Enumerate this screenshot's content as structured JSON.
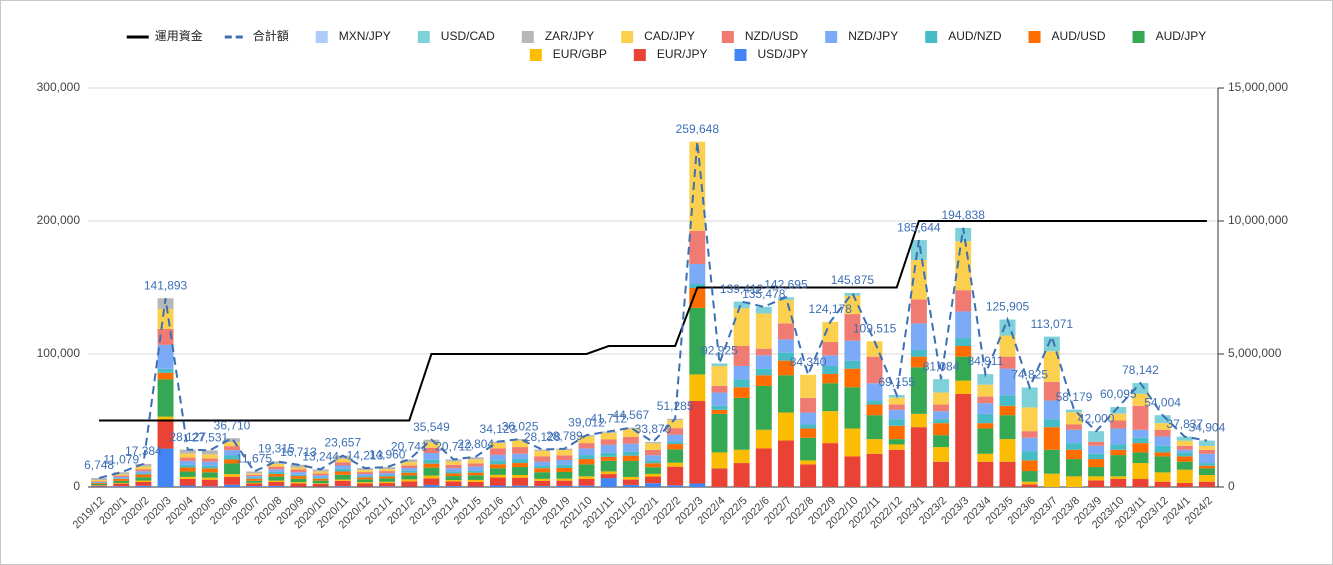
{
  "chart_data": {
    "type": "bar",
    "stacked": true,
    "grid": true,
    "legend": "top",
    "categories": [
      "2019/12",
      "2020/1",
      "2020/2",
      "2020/3",
      "2020/4",
      "2020/5",
      "2020/6",
      "2020/7",
      "2020/8",
      "2020/9",
      "2020/10",
      "2020/11",
      "2020/12",
      "2021/1",
      "2021/2",
      "2021/3",
      "2021/4",
      "2021/5",
      "2021/6",
      "2021/7",
      "2021/8",
      "2021/9",
      "2021/10",
      "2021/11",
      "2021/12",
      "2022/1",
      "2022/2",
      "2022/3",
      "2022/4",
      "2022/5",
      "2022/6",
      "2022/7",
      "2022/8",
      "2022/9",
      "2022/10",
      "2022/11",
      "2022/12",
      "2023/1",
      "2023/2",
      "2023/3",
      "2023/4",
      "2023/5",
      "2023/6",
      "2023/7",
      "2023/8",
      "2023/9",
      "2023/10",
      "2023/11",
      "2023/12",
      "2024/1",
      "2024/2"
    ],
    "ylim": [
      0,
      300000
    ],
    "yticks": [
      0,
      {
        "value": 100000,
        "label": "100,000"
      },
      {
        "value": 200000,
        "label": "200,000"
      },
      {
        "value": 300000,
        "label": "300,000"
      }
    ],
    "y2lim": [
      0,
      15000000
    ],
    "y2ticks": [
      0,
      {
        "value": 5000000,
        "label": "5,000,000"
      },
      {
        "value": 10000000,
        "label": "10,000,000"
      },
      {
        "value": 15000000,
        "label": "15,000,000"
      }
    ],
    "series": [
      {
        "name": "運用資金",
        "type": "line",
        "axis": "y2",
        "color": "#000000",
        "values": [
          2500000,
          2500000,
          2500000,
          2500000,
          2500000,
          2500000,
          2500000,
          2500000,
          2500000,
          2500000,
          2500000,
          2500000,
          2500000,
          2500000,
          2500000,
          5000000,
          5000000,
          5000000,
          5000000,
          5000000,
          5000000,
          5000000,
          5000000,
          5300000,
          5300000,
          5300000,
          5300000,
          7500000,
          7500000,
          7500000,
          7500000,
          7500000,
          7500000,
          7500000,
          7500000,
          7500000,
          7500000,
          10000000,
          10000000,
          10000000,
          10000000,
          10000000,
          10000000,
          10000000,
          10000000,
          10000000,
          10000000,
          10000000,
          10000000,
          10000000,
          10000000
        ]
      },
      {
        "name": "合計額",
        "type": "line",
        "dashed": true,
        "color": "#3d6fb6",
        "values": [
          6748,
          11079,
          17384,
          141893,
          28127,
          27531,
          36710,
          11675,
          19315,
          16713,
          13244,
          23657,
          14213,
          14960,
          20741,
          35549,
          20712,
          22804,
          34123,
          36025,
          28128,
          28789,
          39012,
          41712,
          44567,
          33870,
          51285,
          259648,
          92925,
          139412,
          135478,
          142695,
          84340,
          124178,
          145875,
          109515,
          69155,
          185644,
          81084,
          194838,
          84911,
          125905,
          74825,
          113071,
          58179,
          42000,
          60095,
          78142,
          54004,
          37837,
          34904
        ],
        "value_labels": [
          "6,748",
          "11,079",
          "17,384",
          "141,893",
          "28,127",
          "27,531",
          "36,710",
          "11,675",
          "19,315",
          "16,713",
          "13,244",
          "23,657",
          "14,213",
          "14,960",
          "20,741",
          "35,549",
          "20,712",
          "22,804",
          "34,123",
          "36,025",
          "28,128",
          "28,789",
          "39,012",
          "41,712",
          "44,567",
          "33,870",
          "51,285",
          "259,648",
          "92,925",
          "139,412",
          "135,478",
          "142,695",
          "84,340",
          "124,178",
          "145,875",
          "109,515",
          "69,155",
          "185,644",
          "81,084",
          "194,838",
          "84,911",
          "125,905",
          "74,825",
          "113,071",
          "58,179",
          "42,000",
          "60,095",
          "78,142",
          "54,004",
          "37,837",
          "34,904"
        ]
      },
      {
        "name": "MXN/JPY",
        "type": "bar",
        "color": "#aecbfa",
        "values": [
          0,
          0,
          0,
          0,
          0,
          0,
          0,
          0,
          0,
          0,
          0,
          0,
          0,
          0,
          0,
          0,
          0,
          0,
          0,
          0,
          0,
          0,
          0,
          0,
          0,
          0,
          0,
          0,
          0,
          0,
          0,
          0,
          0,
          0,
          0,
          0,
          0,
          0,
          0,
          0,
          0,
          0,
          0,
          0,
          0,
          0,
          0,
          0,
          0,
          0,
          0
        ]
      },
      {
        "name": "USD/CAD",
        "type": "bar",
        "color": "#7fd1d9",
        "values": [
          0,
          0,
          0,
          0,
          0,
          0,
          0,
          0,
          0,
          0,
          0,
          0,
          0,
          0,
          0,
          0,
          0,
          0,
          0,
          0,
          0,
          0,
          0,
          0,
          0,
          0,
          0,
          0,
          2000,
          5000,
          5000,
          2000,
          0,
          0,
          2000,
          0,
          2000,
          15000,
          10000,
          10000,
          8000,
          12000,
          15000,
          11000,
          2000,
          8000,
          5000,
          8000,
          6000,
          3000,
          4000
        ]
      },
      {
        "name": "ZAR/JPY",
        "type": "bar",
        "color": "#b7b7b7",
        "values": [
          1500,
          1500,
          2000,
          8000,
          3000,
          3000,
          3000,
          1500,
          2000,
          2000,
          1500,
          2500,
          1500,
          1500,
          2000,
          2000,
          1500,
          1500,
          1000,
          1000,
          1000,
          1000,
          1000,
          1000,
          1000,
          1000,
          1000,
          0,
          0,
          0,
          0,
          0,
          0,
          0,
          0,
          0,
          0,
          0,
          0,
          0,
          0,
          0,
          0,
          0,
          0,
          0,
          0,
          0,
          0,
          0,
          0
        ]
      },
      {
        "name": "CAD/JPY",
        "type": "bar",
        "color": "#fcd04f",
        "values": [
          800,
          1000,
          2000,
          15000,
          3000,
          3000,
          3000,
          1000,
          2000,
          1500,
          1500,
          2500,
          1500,
          1500,
          2500,
          4000,
          2500,
          3000,
          4000,
          5000,
          4000,
          4000,
          5000,
          5000,
          6000,
          5000,
          6000,
          67000,
          14925,
          28412,
          26478,
          17695,
          17340,
          15178,
          13875,
          11515,
          5155,
          29644,
          9084,
          36838,
          8911,
          15905,
          17825,
          23071,
          9179,
          0,
          5095,
          9142,
          5004,
          3837,
          2904
        ]
      },
      {
        "name": "NZD/USD",
        "type": "bar",
        "color": "#f07b72",
        "values": [
          600,
          1000,
          1500,
          12000,
          2500,
          2500,
          3000,
          1000,
          2000,
          2000,
          1500,
          2500,
          1500,
          1500,
          2000,
          4000,
          2500,
          2500,
          5000,
          5000,
          4000,
          3500,
          4000,
          4000,
          5000,
          4000,
          5000,
          25000,
          5000,
          15000,
          5000,
          12000,
          11000,
          10000,
          20000,
          20000,
          4000,
          18000,
          5000,
          16000,
          5000,
          9000,
          5000,
          14000,
          4000,
          3000,
          6000,
          18000,
          5000,
          3000,
          3000
        ]
      },
      {
        "name": "NZD/JPY",
        "type": "bar",
        "color": "#7baaf7",
        "values": [
          500,
          1000,
          1500,
          18000,
          3000,
          3000,
          4000,
          1000,
          2000,
          2000,
          1500,
          2500,
          1500,
          1500,
          2000,
          5000,
          2500,
          3000,
          4000,
          4000,
          3000,
          3500,
          5000,
          6000,
          6000,
          4000,
          5000,
          15000,
          10000,
          10000,
          10000,
          10000,
          9000,
          8000,
          15000,
          13000,
          7000,
          20000,
          6000,
          20000,
          8000,
          20000,
          10000,
          14000,
          10000,
          6000,
          12000,
          6000,
          7000,
          2000,
          7000
        ]
      },
      {
        "name": "AUD/NZD",
        "type": "bar",
        "color": "#46bdc6",
        "values": [
          400,
          500,
          1000,
          3000,
          2000,
          2000,
          3000,
          1000,
          1500,
          1000,
          1000,
          2000,
          1000,
          1000,
          1500,
          3000,
          1500,
          1500,
          3000,
          3000,
          2000,
          2500,
          3000,
          3000,
          3000,
          2000,
          2000,
          3000,
          3000,
          6000,
          5000,
          6000,
          3000,
          6000,
          6000,
          3000,
          5000,
          5000,
          3000,
          6000,
          7000,
          8000,
          7000,
          6000,
          5000,
          4000,
          4000,
          4000,
          5000,
          3000,
          2000
        ]
      },
      {
        "name": "AUD/USD",
        "type": "bar",
        "color": "#ff6d01",
        "values": [
          700,
          1500,
          2000,
          5000,
          3000,
          3000,
          3000,
          1500,
          2000,
          2000,
          1500,
          2500,
          1500,
          1500,
          2000,
          3000,
          2000,
          2000,
          3000,
          3000,
          3000,
          3000,
          4000,
          3000,
          4000,
          3000,
          4000,
          15000,
          3000,
          8000,
          8000,
          11000,
          7000,
          7000,
          14000,
          8000,
          10000,
          8000,
          9000,
          8000,
          4000,
          7000,
          8000,
          17000,
          7000,
          6000,
          4000,
          7000,
          3000,
          4000,
          2000
        ]
      },
      {
        "name": "AUD/JPY",
        "type": "bar",
        "color": "#34a853",
        "values": [
          900,
          1500,
          2500,
          28000,
          4000,
          4000,
          8000,
          1500,
          3000,
          2500,
          2000,
          3500,
          2000,
          2500,
          3000,
          6000,
          3000,
          3500,
          5000,
          6000,
          5000,
          5000,
          9000,
          8000,
          12000,
          5000,
          10000,
          50000,
          29000,
          39000,
          33000,
          28000,
          17000,
          21000,
          31000,
          18000,
          4000,
          35000,
          9000,
          18000,
          19000,
          18000,
          8000,
          18000,
          13000,
          7000,
          16000,
          8000,
          12000,
          6000,
          5000
        ]
      },
      {
        "name": "EUR/GBP",
        "type": "bar",
        "color": "#fbbc04",
        "values": [
          300,
          500,
          1000,
          3000,
          1500,
          1500,
          2000,
          500,
          1000,
          1000,
          500,
          1000,
          1000,
          1000,
          1500,
          2000,
          1000,
          1500,
          2000,
          2000,
          1500,
          1500,
          2000,
          2000,
          2000,
          2000,
          3000,
          20000,
          12000,
          10000,
          14000,
          21000,
          3000,
          24000,
          21000,
          11000,
          4000,
          10000,
          11000,
          10000,
          6000,
          17000,
          2000,
          10000,
          8000,
          3000,
          2000,
          12000,
          7000,
          10000,
          5000
        ]
      },
      {
        "name": "EUR/JPY",
        "type": "bar",
        "color": "#ea4335",
        "values": [
          700,
          2000,
          3000,
          21000,
          5000,
          5000,
          6000,
          2000,
          3000,
          2500,
          2000,
          4000,
          2500,
          2500,
          4000,
          5000,
          3500,
          3500,
          6000,
          6000,
          4000,
          4000,
          5000,
          3000,
          4000,
          5000,
          14000,
          62000,
          14000,
          18000,
          29000,
          35000,
          17000,
          33000,
          23000,
          25000,
          28000,
          45000,
          19000,
          70000,
          19000,
          19000,
          2000,
          0,
          0,
          5000,
          6000,
          6000,
          4000,
          3000,
          4000
        ]
      },
      {
        "name": "USD/JPY",
        "type": "bar",
        "color": "#4285f4",
        "values": [
          348,
          579,
          884,
          28893,
          1127,
          531,
          1710,
          675,
          815,
          213,
          244,
          657,
          213,
          460,
          241,
          1549,
          712,
          304,
          1123,
          1025,
          628,
          789,
          1012,
          6712,
          1567,
          2870,
          1285,
          2648,
          0,
          0,
          0,
          0,
          0,
          0,
          0,
          0,
          0,
          0,
          0,
          0,
          0,
          0,
          0,
          0,
          0,
          0,
          0,
          0,
          0,
          0,
          0
        ]
      }
    ]
  }
}
